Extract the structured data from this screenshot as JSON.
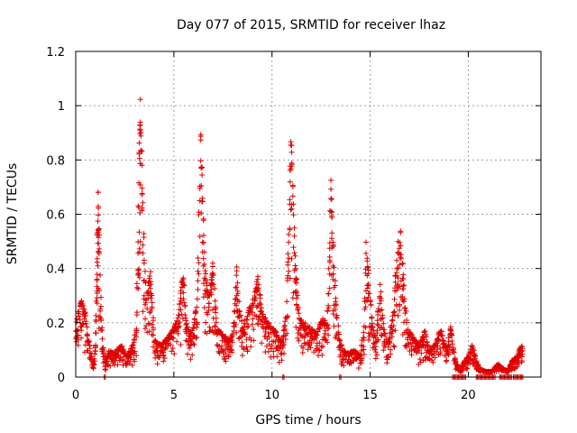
{
  "chart_data": {
    "type": "scatter",
    "title": "Day 077 of 2015, SRMTID for receiver lhaz",
    "xlabel": "GPS time / hours",
    "ylabel": "SRMTID / TECUs",
    "xlim": [
      0,
      23.7
    ],
    "ylim": [
      0,
      1.2
    ],
    "xticks": [
      0,
      5,
      10,
      15,
      20
    ],
    "xtick_labels": [
      "0",
      "5",
      "10",
      "15",
      "20"
    ],
    "yticks": [
      0,
      0.2,
      0.4,
      0.6,
      0.8,
      1,
      1.2
    ],
    "ytick_labels": [
      "0",
      "0.2",
      "0.4",
      "0.6",
      "0.8",
      "1",
      "1.2"
    ],
    "grid": true,
    "marker": "+",
    "color": "#e00000",
    "series": [
      {
        "name": "lhaz SRMTID",
        "envelope": [
          [
            0.0,
            0.18
          ],
          [
            0.1,
            0.25
          ],
          [
            0.3,
            0.29
          ],
          [
            0.5,
            0.24
          ],
          [
            0.6,
            0.16
          ],
          [
            0.7,
            0.12
          ],
          [
            0.8,
            0.08
          ],
          [
            0.9,
            0.05
          ],
          [
            1.0,
            0.12
          ],
          [
            1.05,
            0.28
          ],
          [
            1.1,
            0.55
          ],
          [
            1.15,
            0.7
          ],
          [
            1.2,
            0.48
          ],
          [
            1.3,
            0.22
          ],
          [
            1.4,
            0.12
          ],
          [
            1.5,
            0.06
          ],
          [
            1.7,
            0.1
          ],
          [
            2.0,
            0.09
          ],
          [
            2.3,
            0.12
          ],
          [
            2.6,
            0.08
          ],
          [
            2.9,
            0.12
          ],
          [
            3.1,
            0.18
          ],
          [
            3.2,
            0.7
          ],
          [
            3.25,
            0.92
          ],
          [
            3.3,
            1.04
          ],
          [
            3.4,
            0.75
          ],
          [
            3.5,
            0.45
          ],
          [
            3.6,
            0.3
          ],
          [
            3.8,
            0.4
          ],
          [
            3.9,
            0.28
          ],
          [
            4.0,
            0.14
          ],
          [
            4.3,
            0.12
          ],
          [
            4.6,
            0.14
          ],
          [
            4.9,
            0.17
          ],
          [
            5.2,
            0.22
          ],
          [
            5.4,
            0.35
          ],
          [
            5.5,
            0.4
          ],
          [
            5.6,
            0.22
          ],
          [
            5.8,
            0.16
          ],
          [
            6.0,
            0.19
          ],
          [
            6.2,
            0.3
          ],
          [
            6.35,
            0.92
          ],
          [
            6.45,
            0.7
          ],
          [
            6.6,
            0.4
          ],
          [
            6.8,
            0.3
          ],
          [
            7.0,
            0.42
          ],
          [
            7.2,
            0.18
          ],
          [
            7.5,
            0.16
          ],
          [
            7.8,
            0.14
          ],
          [
            8.0,
            0.16
          ],
          [
            8.2,
            0.42
          ],
          [
            8.3,
            0.28
          ],
          [
            8.5,
            0.18
          ],
          [
            8.8,
            0.25
          ],
          [
            9.1,
            0.3
          ],
          [
            9.3,
            0.38
          ],
          [
            9.5,
            0.24
          ],
          [
            9.8,
            0.2
          ],
          [
            10.1,
            0.18
          ],
          [
            10.3,
            0.15
          ],
          [
            10.5,
            0.14
          ],
          [
            10.7,
            0.22
          ],
          [
            10.85,
            0.55
          ],
          [
            10.95,
            0.92
          ],
          [
            11.05,
            0.75
          ],
          [
            11.2,
            0.4
          ],
          [
            11.4,
            0.22
          ],
          [
            11.7,
            0.2
          ],
          [
            12.0,
            0.18
          ],
          [
            12.3,
            0.17
          ],
          [
            12.6,
            0.22
          ],
          [
            12.8,
            0.2
          ],
          [
            12.9,
            0.4
          ],
          [
            13.0,
            0.74
          ],
          [
            13.1,
            0.55
          ],
          [
            13.25,
            0.3
          ],
          [
            13.4,
            0.16
          ],
          [
            13.6,
            0.1
          ],
          [
            13.9,
            0.09
          ],
          [
            14.2,
            0.1
          ],
          [
            14.5,
            0.08
          ],
          [
            14.7,
            0.2
          ],
          [
            14.8,
            0.5
          ],
          [
            14.9,
            0.4
          ],
          [
            15.1,
            0.2
          ],
          [
            15.3,
            0.14
          ],
          [
            15.5,
            0.35
          ],
          [
            15.7,
            0.18
          ],
          [
            15.9,
            0.12
          ],
          [
            16.2,
            0.25
          ],
          [
            16.4,
            0.5
          ],
          [
            16.55,
            0.54
          ],
          [
            16.7,
            0.38
          ],
          [
            16.9,
            0.18
          ],
          [
            17.2,
            0.15
          ],
          [
            17.5,
            0.12
          ],
          [
            17.8,
            0.18
          ],
          [
            18.0,
            0.1
          ],
          [
            18.3,
            0.12
          ],
          [
            18.6,
            0.18
          ],
          [
            18.9,
            0.1
          ],
          [
            19.1,
            0.2
          ],
          [
            19.3,
            0.07
          ],
          [
            19.6,
            0.02
          ],
          [
            19.8,
            0.06
          ],
          [
            20.0,
            0.08
          ],
          [
            20.2,
            0.12
          ],
          [
            20.4,
            0.06
          ],
          [
            20.6,
            0.03
          ],
          [
            20.9,
            0.02
          ],
          [
            21.2,
            0.02
          ],
          [
            21.5,
            0.05
          ],
          [
            21.8,
            0.03
          ],
          [
            22.0,
            0.02
          ],
          [
            22.2,
            0.06
          ],
          [
            22.5,
            0.08
          ],
          [
            22.7,
            0.12
          ],
          [
            22.8,
            0.1
          ]
        ],
        "zero_runs": [
          [
            1.45,
            1.55
          ],
          [
            10.55,
            10.65
          ],
          [
            13.45,
            13.55
          ],
          [
            19.2,
            19.9
          ],
          [
            20.4,
            21.4
          ],
          [
            21.6,
            22.2
          ],
          [
            22.3,
            22.8
          ]
        ]
      }
    ]
  }
}
